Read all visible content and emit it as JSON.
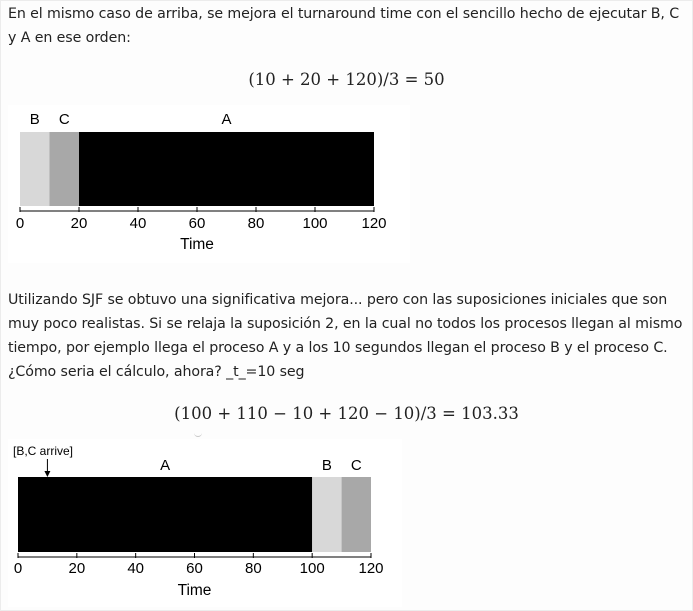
{
  "paragraph1": "En el mismo caso de arriba, se mejora el turnaround time con el sencillo hecho de ejecutar B, C y A en ese orden:",
  "formula1": "(10 + 20 + 120)/3 = 50",
  "paragraph2": "Utilizando SJF se obtuvo una significativa mejora... pero con las suposiciones iniciales que son muy poco realistas. Si se relaja la suposición 2, en la cual no todos los procesos llegan al mismo tiempo, por ejemplo llega el proceso A y a los 10 segundos llegan el proceso B y el proceso C. ¿Cómo seria el cálculo, ahora? _t_=10 seg",
  "formula2": "(100 + 110 − 10 + 120 − 10)/3 = 103.33",
  "chart_data": [
    {
      "type": "bar",
      "xlabel": "Time",
      "xlim": [
        0,
        120
      ],
      "ticks": [
        0,
        20,
        40,
        60,
        80,
        100,
        120
      ],
      "jobs": [
        {
          "name": "B",
          "start": 0,
          "end": 10,
          "color": "#d8d8d8"
        },
        {
          "name": "C",
          "start": 10,
          "end": 20,
          "color": "#a8a8a8"
        },
        {
          "name": "A",
          "start": 20,
          "end": 120,
          "color": "#000000"
        }
      ]
    },
    {
      "type": "bar",
      "xlabel": "Time",
      "xlim": [
        0,
        120
      ],
      "ticks": [
        0,
        20,
        40,
        60,
        80,
        100,
        120
      ],
      "annotation": {
        "text": "[B,C arrive]",
        "at": 10
      },
      "jobs": [
        {
          "name": "A",
          "start": 0,
          "end": 100,
          "color": "#000000"
        },
        {
          "name": "B",
          "start": 100,
          "end": 110,
          "color": "#d8d8d8"
        },
        {
          "name": "C",
          "start": 110,
          "end": 120,
          "color": "#a8a8a8"
        }
      ]
    }
  ]
}
